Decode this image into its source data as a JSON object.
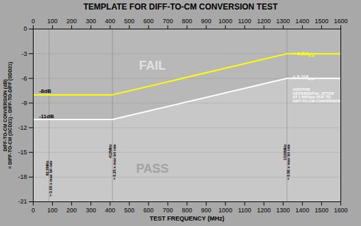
{
  "chart_data": {
    "type": "line",
    "title": "TEMPLATE FOR DIFF-TO-CM CONVERSION TEST",
    "xlabel": "TEST FREQUENCY (MHz)",
    "ylabel": "DIFF-TO-CM CONVERSION (dB)\n= DIFF-TO-CM (SCD21) - DIFF-TO-DIFF (SDD21)",
    "x": [
      0,
      82.5,
      412,
      1320,
      1600
    ],
    "series": [
      {
        "color": "yellow",
        "values": [
          -8,
          -8,
          -8,
          -3,
          -3
        ],
        "label": {
          "text": "= 0.2UI",
          "subscript": "P-P",
          "x": 1350,
          "y": -3.0
        }
      },
      {
        "color": "white",
        "values": [
          -11,
          -11,
          -11,
          -6,
          -6
        ],
        "label": {
          "text": "= 0.1UI",
          "subscript": "P-P",
          "x": 1350,
          "y": -5.8
        }
      }
    ],
    "xlim": [
      0,
      1600
    ],
    "ylim": [
      -21,
      0
    ],
    "xticks": [
      0,
      100,
      200,
      300,
      400,
      500,
      600,
      700,
      800,
      900,
      1000,
      1100,
      1200,
      1300,
      1400,
      1500,
      1600
    ],
    "yticks": [
      0,
      -3,
      -6,
      -9,
      -12,
      -15,
      -18,
      -21
    ],
    "grid": "y",
    "vlines": [
      {
        "x": 82.5,
        "label": "82.5MHz\n= 0.05 x max bit rate",
        "label_y": -16
      },
      {
        "x": 412,
        "label": "412MHz\n= 0.25 x max bit rate",
        "label_y": -14
      },
      {
        "x": 1320,
        "label": "1320MHz\n= 0.80 x max bit rate",
        "label_y": -14
      }
    ],
    "region_labels": [
      {
        "text": "FAIL",
        "x": 620,
        "y": -4.5
      },
      {
        "text": "PASS",
        "x": 620,
        "y": -17
      }
    ],
    "level_labels": [
      {
        "text": "-8dB",
        "x": 30,
        "y": -7.8
      },
      {
        "text": "-11dB",
        "x": 30,
        "y": -10.8
      }
    ],
    "annotations": [
      {
        "text": "ADDITIVE\nDIFFERENTIAL JITTER\nAT 1.65Gbps DUE TO\nDIFF-TO-CM CONVERSION",
        "x": 1350,
        "y": -7.2,
        "color": "white"
      }
    ]
  }
}
